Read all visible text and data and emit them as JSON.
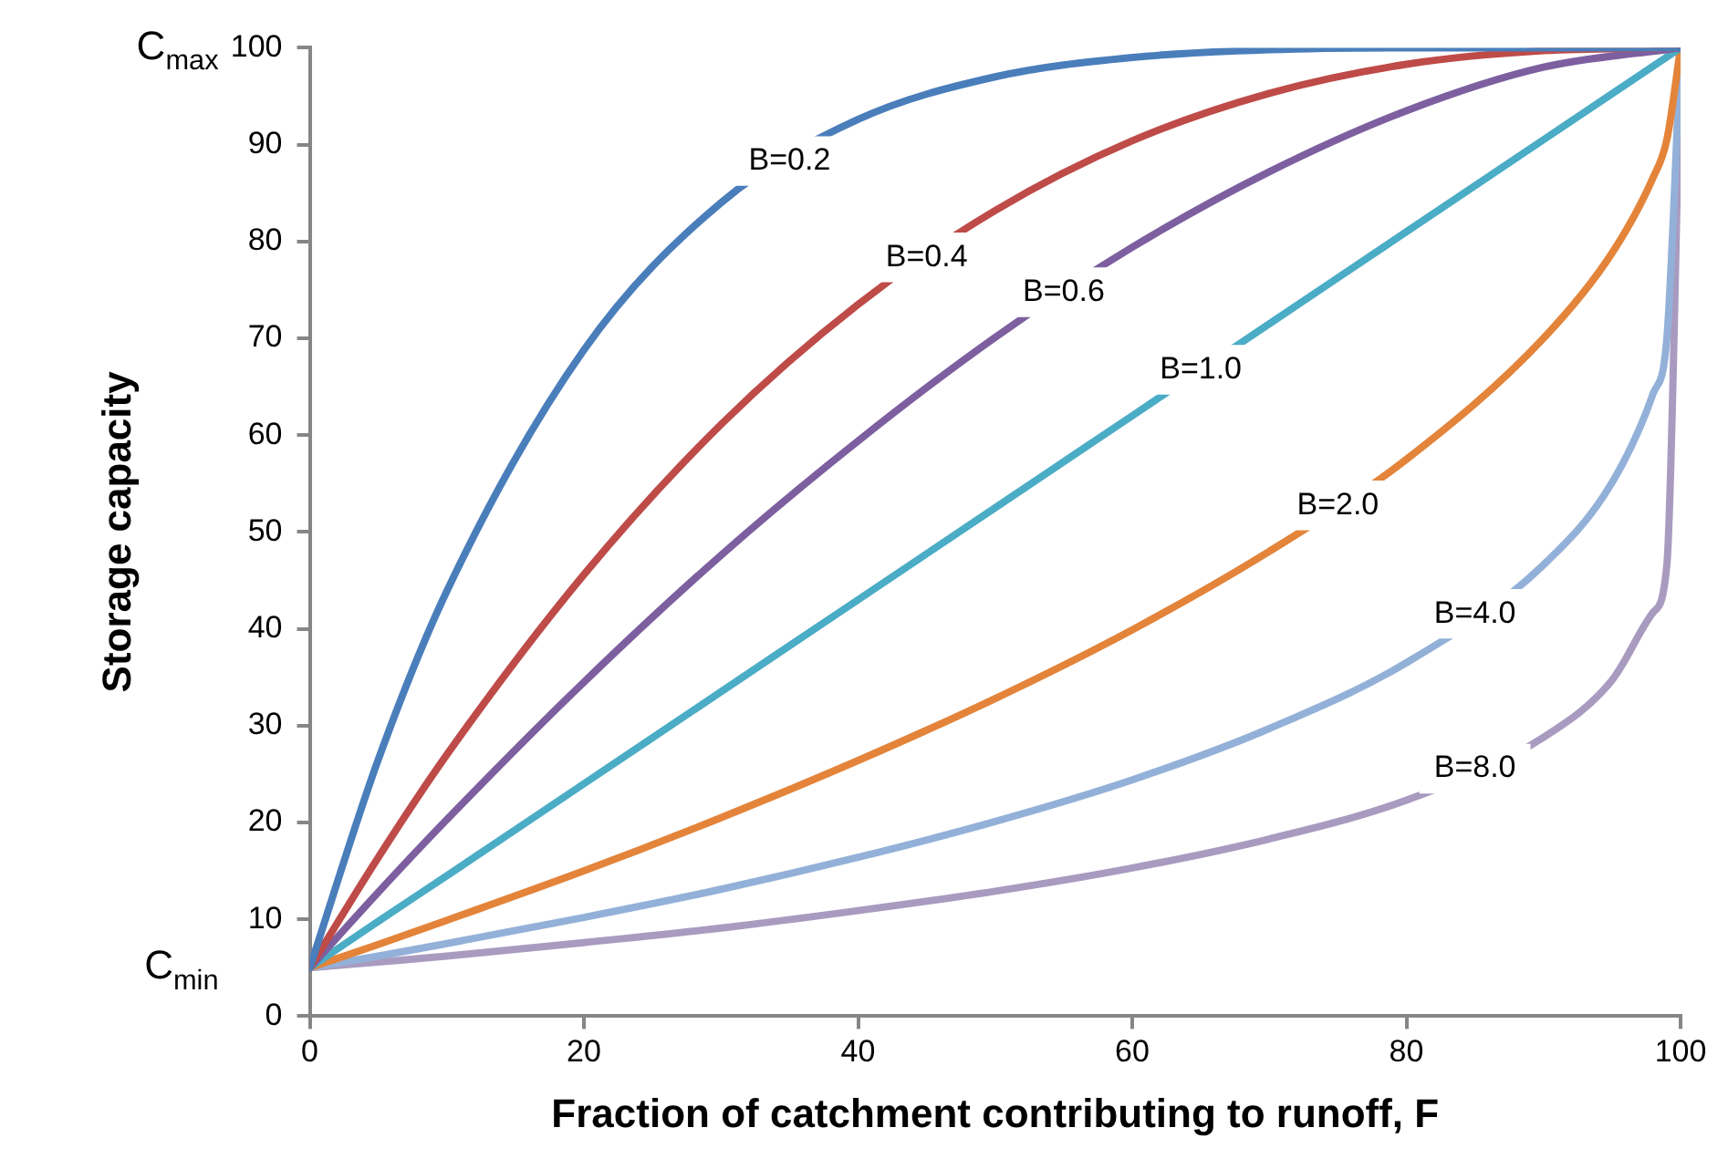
{
  "chart_data": {
    "type": "line",
    "xlabel": "Fraction of catchment contributing to runoff, F",
    "ylabel": "Storage capacity",
    "xlim": [
      0,
      100
    ],
    "xticks": [
      0,
      20,
      40,
      60,
      80,
      100
    ],
    "ylim": [
      0,
      100
    ],
    "yticks": [
      0,
      10,
      20,
      30,
      40,
      50,
      60,
      70,
      80,
      90,
      100
    ],
    "grid": false,
    "legend": false,
    "marker": "none",
    "line_style": "solid",
    "x": [
      0,
      5,
      10,
      20,
      30,
      40,
      50,
      60,
      70,
      80,
      90,
      95,
      98,
      99,
      100
    ],
    "series": [
      {
        "name": "B=0.2",
        "color": "#4a7ebb",
        "x": [
          0,
          5,
          10,
          20,
          30,
          40,
          50,
          60,
          70,
          80,
          90,
          100
        ],
        "values": [
          5,
          26.5,
          43.9,
          68.8,
          84.0,
          92.6,
          97.0,
          99.0,
          99.8,
          100,
          100,
          100
        ]
      },
      {
        "name": "B=0.4",
        "color": "#be4b48",
        "x": [
          0,
          5,
          10,
          20,
          30,
          40,
          50,
          60,
          70,
          80,
          90,
          100
        ],
        "values": [
          5,
          16.4,
          27.0,
          45.6,
          61.1,
          73.5,
          83.2,
          90.4,
          95.3,
          98.3,
          99.7,
          100
        ]
      },
      {
        "name": "B=0.6",
        "color": "#7d5fa0",
        "x": [
          0,
          5,
          10,
          20,
          30,
          40,
          50,
          60,
          70,
          80,
          90,
          100
        ],
        "values": [
          5,
          12.8,
          20.3,
          34.5,
          47.6,
          59.4,
          70.1,
          79.4,
          87.2,
          93.5,
          98.0,
          100
        ]
      },
      {
        "name": "B=1.0",
        "color": "#4bacc6",
        "x": [
          0,
          5,
          10,
          20,
          30,
          40,
          50,
          60,
          70,
          80,
          90,
          100
        ],
        "values": [
          5,
          9.8,
          14.5,
          24,
          33.5,
          43,
          52.5,
          62,
          71.5,
          81,
          90.5,
          100
        ]
      },
      {
        "name": "B=2.0",
        "color": "#e3843a",
        "values": [
          5,
          7.4,
          9.9,
          15.0,
          20.5,
          26.4,
          32.8,
          39.9,
          48.0,
          57.5,
          70.0,
          78.8,
          86.6,
          90.5,
          100
        ]
      },
      {
        "name": "B=4.0",
        "color": "#93b1d8",
        "values": [
          5,
          6.2,
          7.5,
          10.2,
          13.1,
          16.4,
          20.1,
          24.4,
          29.7,
          36.5,
          46.6,
          55.1,
          64.3,
          70.0,
          100
        ]
      },
      {
        "name": "B=8.0",
        "color": "#a99bc0",
        "values": [
          5,
          5.6,
          6.2,
          7.6,
          9.1,
          10.9,
          12.9,
          15.3,
          18.3,
          22.3,
          28.8,
          34.7,
          41.7,
          46.6,
          100
        ]
      }
    ],
    "annotations": [
      "C$_{max}$",
      "C$_{min}$"
    ]
  }
}
